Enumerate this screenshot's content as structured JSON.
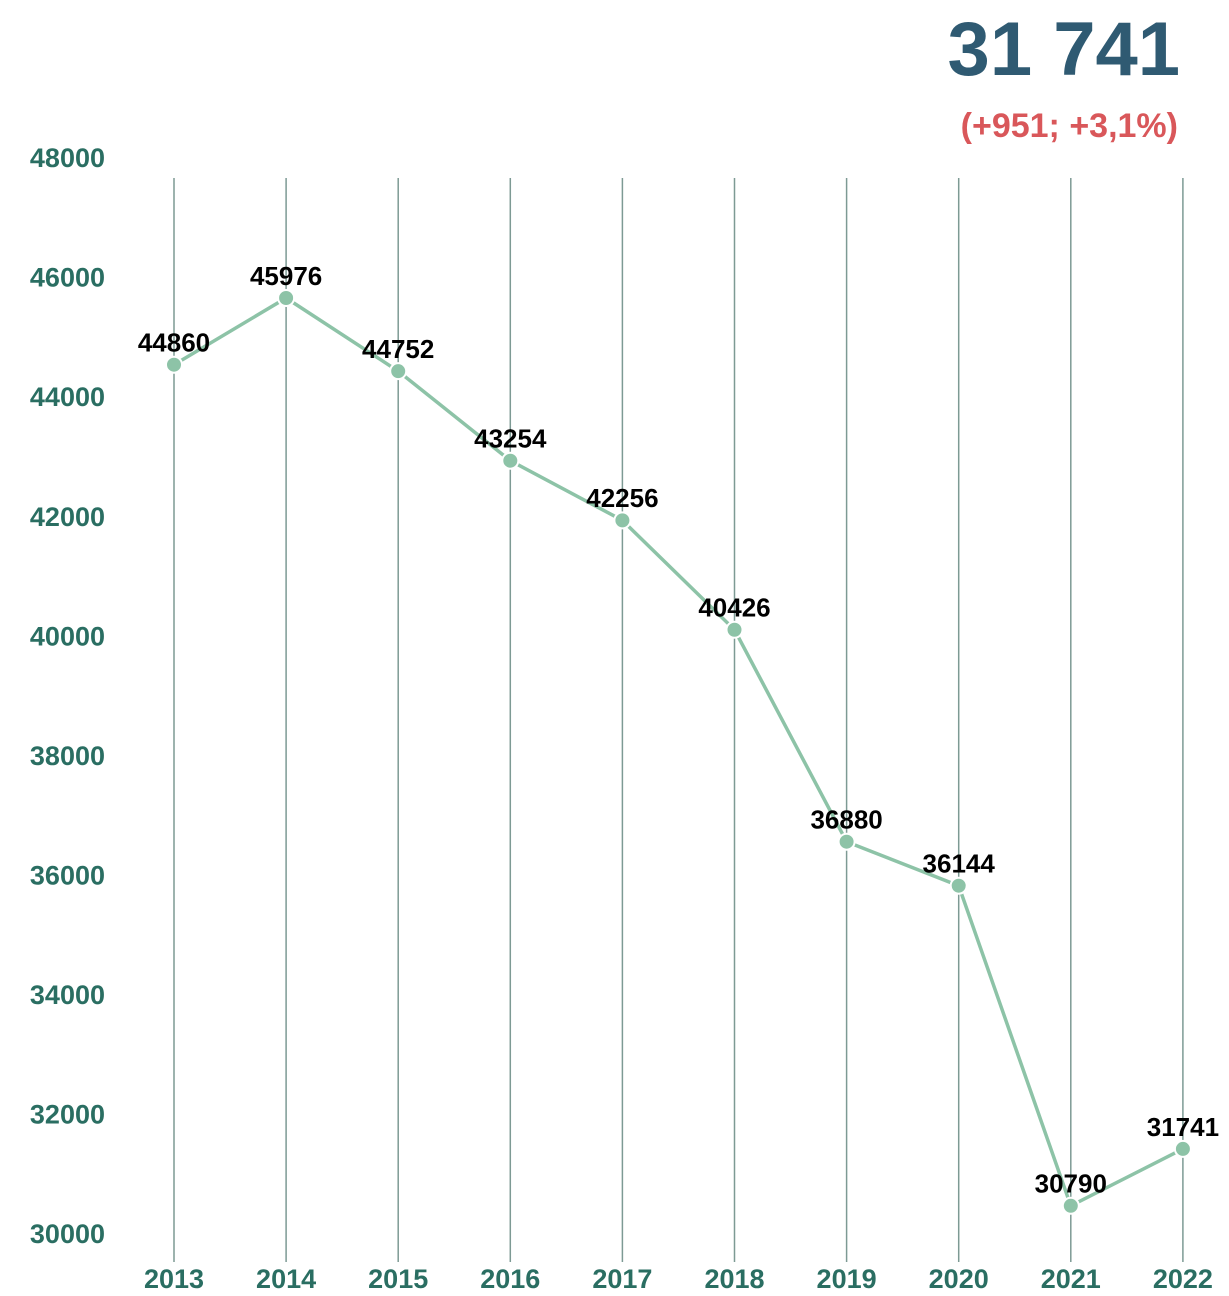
{
  "chart_data": {
    "type": "line",
    "headline": "31 741",
    "headline_change": "(+951; +3,1%)",
    "categories": [
      "2013",
      "2014",
      "2015",
      "2016",
      "2017",
      "2018",
      "2019",
      "2020",
      "2021",
      "2022"
    ],
    "values": [
      44860,
      45976,
      44752,
      43254,
      42256,
      40426,
      36880,
      36144,
      30790,
      31741
    ],
    "color": "#8dc3a7",
    "ylim": [
      30000,
      48000
    ],
    "yticks": [
      30000,
      32000,
      34000,
      36000,
      38000,
      40000,
      42000,
      44000,
      46000,
      48000
    ],
    "grid": true
  }
}
